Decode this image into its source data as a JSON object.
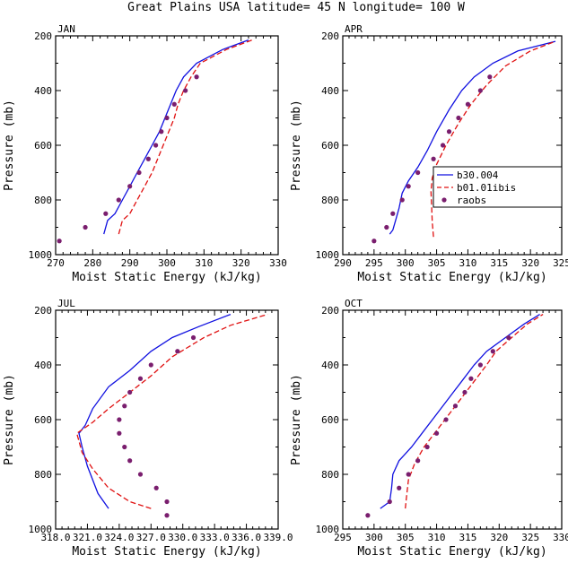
{
  "title": "Great Plains USA  latitude= 45 N longitude= 100 W",
  "legend": [
    {
      "label": "b30.004",
      "color": "#1010e0",
      "style": "solid"
    },
    {
      "label": "b01.01ibis",
      "color": "#e01010",
      "style": "dashed"
    },
    {
      "label": "raobs",
      "color": "#7a1e6e",
      "style": "marker"
    }
  ],
  "chart_data": [
    {
      "type": "line",
      "title": "JAN",
      "xlabel": "Moist Static Energy (kJ/kg)",
      "ylabel": "Pressure (mb)",
      "xlim": [
        270,
        330
      ],
      "ylim": [
        1000,
        200
      ],
      "xticks": [
        "270",
        "280",
        "290",
        "300",
        "310",
        "320",
        "330"
      ],
      "yticks": [
        "200",
        "400",
        "600",
        "800",
        "1000"
      ],
      "series": [
        {
          "name": "b30.004",
          "points": [
            [
              283,
              925
            ],
            [
              284,
              875
            ],
            [
              286,
              850
            ],
            [
              288,
              800
            ],
            [
              290,
              750
            ],
            [
              292,
              700
            ],
            [
              294,
              650
            ],
            [
              296,
              600
            ],
            [
              298,
              550
            ],
            [
              299.5,
              500
            ],
            [
              301,
              450
            ],
            [
              302.5,
              400
            ],
            [
              304.5,
              350
            ],
            [
              308,
              300
            ],
            [
              315,
              250
            ],
            [
              322,
              215
            ]
          ]
        },
        {
          "name": "b01.01ibis",
          "points": [
            [
              287,
              925
            ],
            [
              288,
              875
            ],
            [
              290,
              850
            ],
            [
              292,
              800
            ],
            [
              294,
              750
            ],
            [
              296,
              700
            ],
            [
              297.5,
              650
            ],
            [
              299,
              600
            ],
            [
              300.5,
              550
            ],
            [
              302,
              500
            ],
            [
              303,
              450
            ],
            [
              304.5,
              400
            ],
            [
              306.5,
              350
            ],
            [
              309,
              300
            ],
            [
              316,
              250
            ],
            [
              323,
              215
            ]
          ]
        },
        {
          "name": "raobs",
          "points": [
            [
              271,
              950
            ],
            [
              278,
              900
            ],
            [
              283.5,
              850
            ],
            [
              287,
              800
            ],
            [
              290,
              750
            ],
            [
              292.5,
              700
            ],
            [
              295,
              650
            ],
            [
              297,
              600
            ],
            [
              298.5,
              550
            ],
            [
              300,
              500
            ],
            [
              302,
              450
            ],
            [
              305,
              400
            ],
            [
              308,
              350
            ]
          ]
        }
      ]
    },
    {
      "type": "line",
      "title": "APR",
      "xlabel": "Moist Static Energy (kJ/kg)",
      "ylabel": "Pressure (mb)",
      "xlim": [
        290,
        325
      ],
      "ylim": [
        1000,
        200
      ],
      "xticks": [
        "290",
        "295",
        "300",
        "305",
        "310",
        "315",
        "320",
        "325"
      ],
      "yticks": [
        "200",
        "400",
        "600",
        "800",
        "1000"
      ],
      "series": [
        {
          "name": "b30.004",
          "points": [
            [
              297.5,
              925
            ],
            [
              298,
              910
            ],
            [
              298.5,
              870
            ],
            [
              299,
              830
            ],
            [
              299.5,
              775
            ],
            [
              300.5,
              730
            ],
            [
              302,
              680
            ],
            [
              303.5,
              620
            ],
            [
              305,
              550
            ],
            [
              307,
              470
            ],
            [
              309,
              400
            ],
            [
              311,
              350
            ],
            [
              314,
              300
            ],
            [
              318,
              255
            ],
            [
              324,
              220
            ]
          ]
        },
        {
          "name": "b01.01ibis",
          "points": [
            [
              304.5,
              935
            ],
            [
              304.3,
              880
            ],
            [
              304.2,
              820
            ],
            [
              304.1,
              770
            ],
            [
              304.3,
              720
            ],
            [
              305,
              670
            ],
            [
              306.5,
              600
            ],
            [
              308.5,
              520
            ],
            [
              310.5,
              450
            ],
            [
              313,
              380
            ],
            [
              316,
              310
            ],
            [
              320,
              255
            ],
            [
              324,
              220
            ]
          ]
        },
        {
          "name": "raobs",
          "points": [
            [
              295,
              950
            ],
            [
              297,
              900
            ],
            [
              298,
              850
            ],
            [
              299.5,
              800
            ],
            [
              300.5,
              750
            ],
            [
              302,
              700
            ],
            [
              304.5,
              650
            ],
            [
              306,
              600
            ],
            [
              307,
              550
            ],
            [
              308.5,
              500
            ],
            [
              310,
              450
            ],
            [
              312,
              400
            ],
            [
              313.5,
              350
            ]
          ]
        }
      ]
    },
    {
      "type": "line",
      "title": "JUL",
      "xlabel": "Moist Static Energy (kJ/kg)",
      "ylabel": "Pressure (mb)",
      "xlim": [
        318.0,
        339.0
      ],
      "ylim": [
        1000,
        200
      ],
      "xticks": [
        "318.0",
        "321.0",
        "324.0",
        "327.0",
        "330.0",
        "333.0",
        "336.0",
        "339.0"
      ],
      "yticks": [
        "200",
        "400",
        "600",
        "800",
        "1000"
      ],
      "series": [
        {
          "name": "b30.004",
          "points": [
            [
              323,
              925
            ],
            [
              322,
              870
            ],
            [
              321,
              770
            ],
            [
              320.5,
              700
            ],
            [
              320.2,
              650
            ],
            [
              320.8,
              620
            ],
            [
              321.5,
              560
            ],
            [
              323,
              480
            ],
            [
              325,
              420
            ],
            [
              327,
              350
            ],
            [
              329,
              300
            ],
            [
              331.5,
              260
            ],
            [
              334.5,
              215
            ]
          ]
        },
        {
          "name": "b01.01ibis",
          "points": [
            [
              327,
              925
            ],
            [
              325,
              900
            ],
            [
              323,
              850
            ],
            [
              321.5,
              780
            ],
            [
              320.5,
              720
            ],
            [
              320,
              650
            ],
            [
              321.5,
              610
            ],
            [
              323,
              560
            ],
            [
              325,
              500
            ],
            [
              327,
              440
            ],
            [
              329,
              370
            ],
            [
              332,
              300
            ],
            [
              334.5,
              255
            ],
            [
              338,
              215
            ]
          ]
        },
        {
          "name": "raobs",
          "points": [
            [
              328.5,
              950
            ],
            [
              328.5,
              900
            ],
            [
              327.5,
              850
            ],
            [
              326,
              800
            ],
            [
              325,
              750
            ],
            [
              324.5,
              700
            ],
            [
              324,
              650
            ],
            [
              324,
              600
            ],
            [
              324.5,
              550
            ],
            [
              325,
              500
            ],
            [
              326,
              450
            ],
            [
              327,
              400
            ],
            [
              329.5,
              350
            ],
            [
              331,
              300
            ]
          ]
        }
      ]
    },
    {
      "type": "line",
      "title": "OCT",
      "xlabel": "Moist Static Energy (kJ/kg)",
      "ylabel": "Pressure (mb)",
      "xlim": [
        295,
        330
      ],
      "ylim": [
        1000,
        200
      ],
      "xticks": [
        "295",
        "300",
        "305",
        "310",
        "315",
        "320",
        "325",
        "330"
      ],
      "yticks": [
        "200",
        "400",
        "600",
        "800",
        "1000"
      ],
      "series": [
        {
          "name": "b30.004",
          "points": [
            [
              301,
              925
            ],
            [
              302.5,
              900
            ],
            [
              302.8,
              850
            ],
            [
              303,
              800
            ],
            [
              304,
              750
            ],
            [
              306,
              700
            ],
            [
              308,
              640
            ],
            [
              310,
              580
            ],
            [
              312,
              520
            ],
            [
              314,
              460
            ],
            [
              316,
              400
            ],
            [
              318,
              350
            ],
            [
              321,
              300
            ],
            [
              324,
              250
            ],
            [
              326.5,
              215
            ]
          ]
        },
        {
          "name": "b01.01ibis",
          "points": [
            [
              305,
              925
            ],
            [
              305.2,
              880
            ],
            [
              305.5,
              820
            ],
            [
              306.5,
              760
            ],
            [
              308,
              700
            ],
            [
              310,
              640
            ],
            [
              312,
              580
            ],
            [
              314,
              520
            ],
            [
              316,
              460
            ],
            [
              318,
              400
            ],
            [
              319.5,
              350
            ],
            [
              322,
              300
            ],
            [
              324.5,
              250
            ],
            [
              327,
              215
            ]
          ]
        },
        {
          "name": "raobs",
          "points": [
            [
              299,
              950
            ],
            [
              302.5,
              900
            ],
            [
              304,
              850
            ],
            [
              305.5,
              800
            ],
            [
              307,
              750
            ],
            [
              308.5,
              700
            ],
            [
              310,
              650
            ],
            [
              311.5,
              600
            ],
            [
              313,
              550
            ],
            [
              314.5,
              500
            ],
            [
              315.5,
              450
            ],
            [
              317,
              400
            ],
            [
              319,
              350
            ],
            [
              321.5,
              300
            ]
          ]
        }
      ]
    }
  ]
}
